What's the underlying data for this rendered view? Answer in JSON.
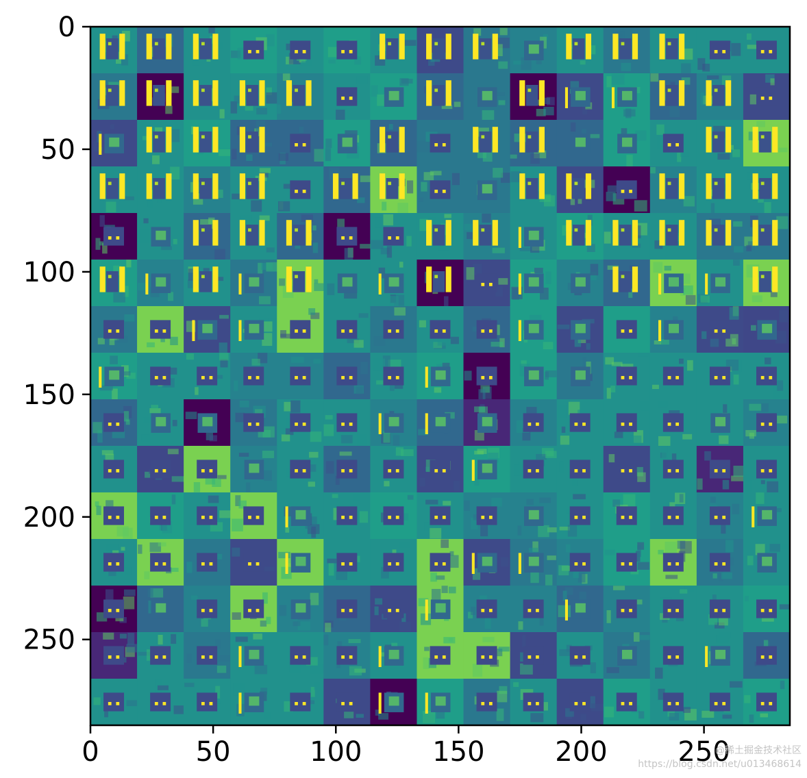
{
  "chart_data": {
    "type": "heatmap",
    "title": "",
    "xlabel": "",
    "ylabel": "",
    "x_range": [
      0,
      285
    ],
    "y_range": [
      0,
      285
    ],
    "y_inverted": true,
    "x_ticks": [
      0,
      50,
      100,
      150,
      200,
      250
    ],
    "y_ticks": [
      0,
      50,
      100,
      150,
      200,
      250
    ],
    "x_tick_labels": [
      "0",
      "50",
      "100",
      "150",
      "200",
      "250"
    ],
    "y_tick_labels": [
      "0",
      "50",
      "100",
      "150",
      "200",
      "250"
    ],
    "grid": false,
    "legend": "none",
    "colormap": "viridis",
    "tile_grid": {
      "rows": 15,
      "cols": 15,
      "tile_size": 19
    }
  },
  "watermark": {
    "line1": "@稀土掘金技术社区",
    "line2": "https://blog.csdn.net/u013468614"
  },
  "colors": {
    "low": "#440154",
    "mid_low": "#3b528b",
    "mid": "#21918c",
    "mid_high": "#5ec962",
    "high": "#fde725"
  }
}
